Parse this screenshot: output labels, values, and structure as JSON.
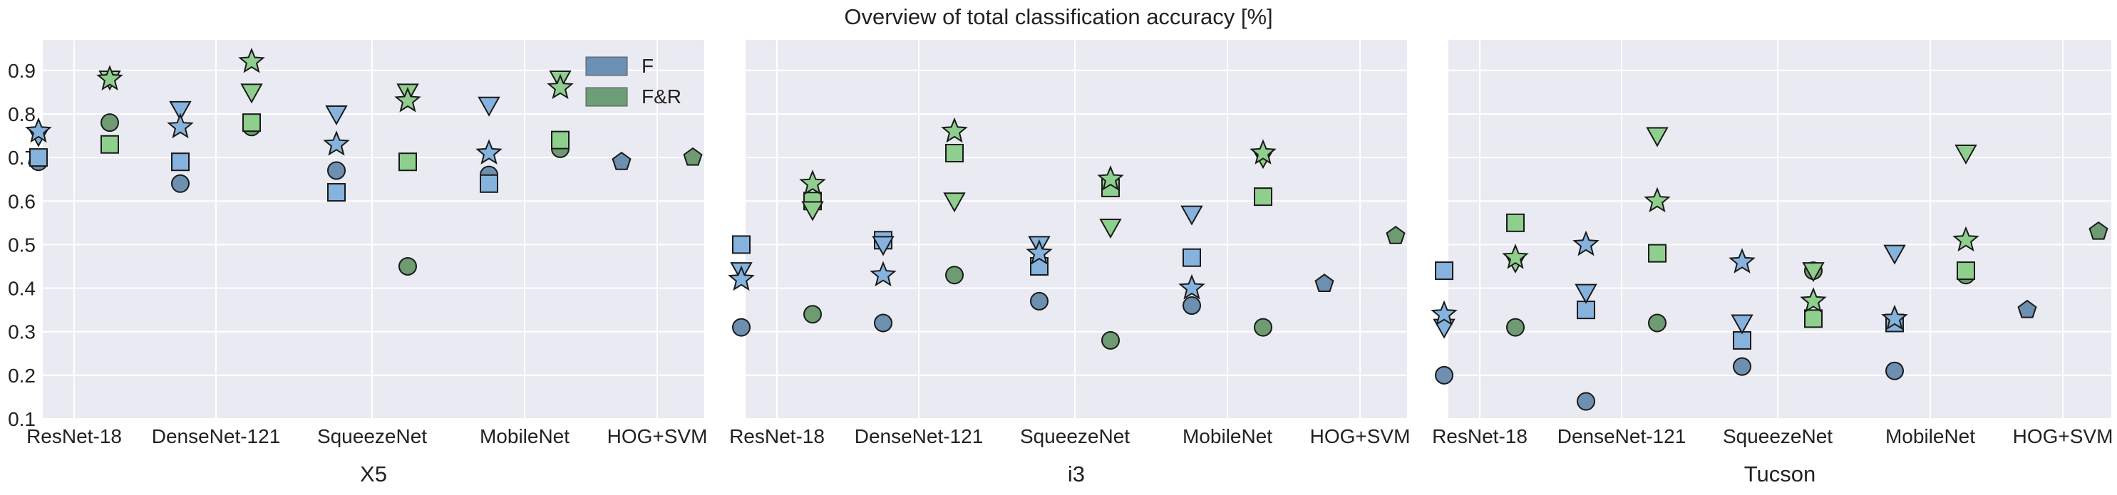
{
  "figure": {
    "title": "Overview of total classification accuracy [%]"
  },
  "legend": {
    "items": [
      {
        "label": "F",
        "color": "#6b8fb5"
      },
      {
        "label": "F&R",
        "color": "#6d9e77"
      }
    ]
  },
  "colors": {
    "panel_bg": "#eaeaf2",
    "grid": "#ffffff",
    "blue_dark": "#6d8fb0",
    "blue_light": "#86b3dd",
    "green_dark": "#6e9b72",
    "green_light": "#8fcf8d",
    "edge": "#1a1a1a"
  },
  "chart_data": [
    {
      "type": "scatter",
      "xlabel": "X5",
      "ylim": [
        0.1,
        0.97
      ],
      "yticks": [
        0.1,
        0.2,
        0.3,
        0.4,
        0.5,
        0.6,
        0.7,
        0.8,
        0.9
      ],
      "categories": [
        "ResNet-18",
        "DenseNet-121",
        "SqueezeNet",
        "MobileNet",
        "HOG+SVM"
      ],
      "legend_position": "top-right",
      "series": [
        {
          "name": "F",
          "marker_values": {
            "circle": [
              0.69,
              0.64,
              0.67,
              0.66,
              null
            ],
            "square": [
              0.7,
              0.69,
              0.62,
              0.64,
              null
            ],
            "triangle": [
              0.75,
              0.81,
              0.8,
              0.82,
              null
            ],
            "star": [
              0.76,
              0.77,
              0.73,
              0.71,
              null
            ],
            "pentagon": [
              null,
              null,
              null,
              null,
              0.69
            ]
          }
        },
        {
          "name": "F&R",
          "marker_values": {
            "circle": [
              0.78,
              0.77,
              0.45,
              0.72,
              null
            ],
            "square": [
              0.73,
              0.78,
              0.69,
              0.74,
              null
            ],
            "triangle": [
              0.88,
              0.85,
              0.85,
              0.88,
              null
            ],
            "star": [
              0.88,
              0.92,
              0.83,
              0.86,
              null
            ],
            "pentagon": [
              null,
              null,
              null,
              null,
              0.7
            ]
          }
        }
      ]
    },
    {
      "type": "scatter",
      "xlabel": "i3",
      "ylim": [
        0.1,
        0.97
      ],
      "yticks": [
        0.1,
        0.2,
        0.3,
        0.4,
        0.5,
        0.6,
        0.7,
        0.8,
        0.9
      ],
      "categories": [
        "ResNet-18",
        "DenseNet-121",
        "SqueezeNet",
        "MobileNet",
        "HOG+SVM"
      ],
      "series": [
        {
          "name": "F",
          "marker_values": {
            "circle": [
              0.31,
              0.32,
              0.37,
              0.36,
              null
            ],
            "square": [
              0.5,
              0.51,
              0.45,
              0.47,
              null
            ],
            "triangle": [
              0.44,
              0.5,
              0.5,
              0.57,
              null
            ],
            "star": [
              0.42,
              0.43,
              0.48,
              0.4,
              null
            ],
            "pentagon": [
              null,
              null,
              null,
              null,
              0.41
            ]
          }
        },
        {
          "name": "F&R",
          "marker_values": {
            "circle": [
              0.34,
              0.43,
              0.28,
              0.31,
              null
            ],
            "square": [
              0.6,
              0.71,
              0.63,
              0.61,
              null
            ],
            "triangle": [
              0.58,
              0.6,
              0.54,
              0.7,
              null
            ],
            "star": [
              0.64,
              0.76,
              0.65,
              0.71,
              null
            ],
            "pentagon": [
              null,
              null,
              null,
              null,
              0.52
            ]
          }
        }
      ]
    },
    {
      "type": "scatter",
      "xlabel": "Tucson",
      "ylim": [
        0.1,
        0.97
      ],
      "yticks": [
        0.1,
        0.2,
        0.3,
        0.4,
        0.5,
        0.6,
        0.7,
        0.8,
        0.9
      ],
      "categories": [
        "ResNet-18",
        "DenseNet-121",
        "SqueezeNet",
        "MobileNet",
        "HOG+SVM"
      ],
      "series": [
        {
          "name": "F",
          "marker_values": {
            "circle": [
              0.2,
              0.14,
              0.22,
              0.21,
              null
            ],
            "square": [
              0.44,
              0.35,
              0.28,
              0.32,
              null
            ],
            "triangle": [
              0.31,
              0.39,
              0.32,
              0.48,
              null
            ],
            "star": [
              0.34,
              0.5,
              0.46,
              0.33,
              null
            ],
            "pentagon": [
              null,
              null,
              null,
              null,
              0.35
            ]
          }
        },
        {
          "name": "F&R",
          "marker_values": {
            "circle": [
              0.31,
              0.32,
              0.44,
              0.43,
              null
            ],
            "square": [
              0.55,
              0.48,
              0.33,
              0.44,
              null
            ],
            "triangle": [
              0.46,
              0.75,
              0.44,
              0.71,
              null
            ],
            "star": [
              0.47,
              0.6,
              0.37,
              0.51,
              null
            ],
            "pentagon": [
              null,
              null,
              null,
              null,
              0.53
            ]
          }
        }
      ]
    }
  ]
}
